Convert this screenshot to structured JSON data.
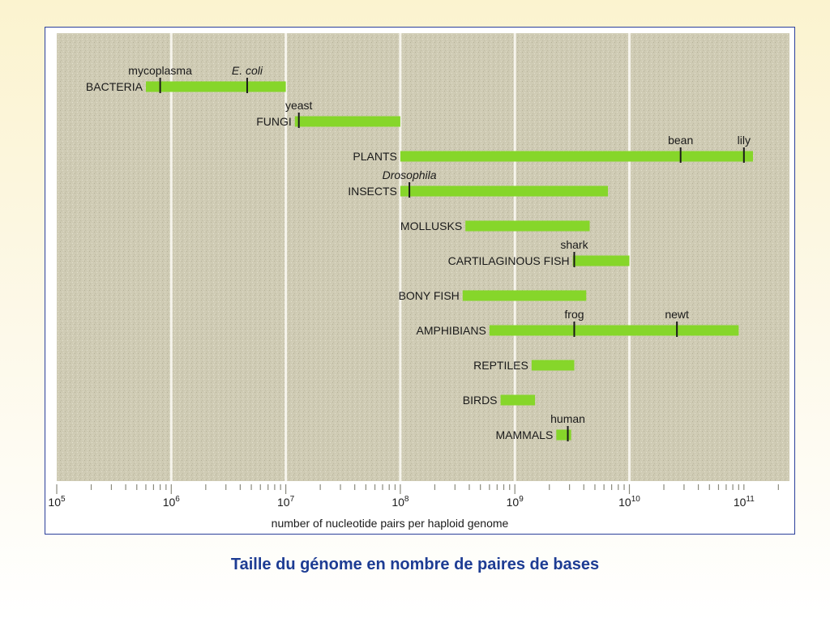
{
  "chart_data": {
    "type": "range-bar",
    "scale": "log10",
    "xlabel": "number of nucleotide pairs per haploid genome",
    "x_ticks": [
      {
        "exp": 5,
        "label": "10",
        "sup": "5"
      },
      {
        "exp": 6,
        "label": "10",
        "sup": "6"
      },
      {
        "exp": 7,
        "label": "10",
        "sup": "7"
      },
      {
        "exp": 8,
        "label": "10",
        "sup": "8"
      },
      {
        "exp": 9,
        "label": "10",
        "sup": "9"
      },
      {
        "exp": 10,
        "label": "10",
        "sup": "10"
      },
      {
        "exp": 11,
        "label": "10",
        "sup": "11"
      }
    ],
    "xlim": [
      100000,
      130000000000
    ],
    "grid": "vertical at each power of ten",
    "groups": [
      {
        "name": "BACTERIA",
        "min": 600000,
        "max": 10000000,
        "markers": [
          {
            "label": "mycoplasma",
            "value": 800000,
            "italic": false
          },
          {
            "label": "E. coli",
            "value": 4600000,
            "italic": true
          }
        ]
      },
      {
        "name": "FUNGI",
        "min": 12000000,
        "max": 100000000,
        "markers": [
          {
            "label": "yeast",
            "value": 13000000,
            "italic": false
          }
        ]
      },
      {
        "name": "PLANTS",
        "min": 100000000,
        "max": 120000000000,
        "markers": [
          {
            "label": "bean",
            "value": 28000000000,
            "italic": false
          },
          {
            "label": "lily",
            "value": 100000000000,
            "italic": false
          }
        ]
      },
      {
        "name": "INSECTS",
        "min": 100000000,
        "max": 6500000000,
        "markers": [
          {
            "label": "Drosophila",
            "value": 120000000,
            "italic": true
          }
        ]
      },
      {
        "name": "MOLLUSKS",
        "min": 370000000,
        "max": 4500000000,
        "markers": []
      },
      {
        "name": "CARTILAGINOUS FISH",
        "min": 3200000000,
        "max": 10000000000,
        "markers": [
          {
            "label": "shark",
            "value": 3300000000,
            "italic": false
          }
        ]
      },
      {
        "name": "BONY FISH",
        "min": 350000000,
        "max": 4200000000,
        "markers": []
      },
      {
        "name": "AMPHIBIANS",
        "min": 600000000,
        "max": 90000000000,
        "markers": [
          {
            "label": "frog",
            "value": 3300000000,
            "italic": false
          },
          {
            "label": "newt",
            "value": 26000000000,
            "italic": false
          }
        ]
      },
      {
        "name": "REPTILES",
        "min": 1400000000,
        "max": 3300000000,
        "markers": []
      },
      {
        "name": "BIRDS",
        "min": 750000000,
        "max": 1500000000,
        "markers": []
      },
      {
        "name": "MAMMALS",
        "min": 2300000000,
        "max": 3100000000,
        "markers": [
          {
            "label": "human",
            "value": 2900000000,
            "italic": false
          }
        ]
      }
    ],
    "colors": {
      "plot_background": "#cfcbb4",
      "grid_line": "#f6f4ec",
      "bar_fill": "#86d62a",
      "marker": "#1a1a1a",
      "axis_text": "#1a1a1a"
    }
  },
  "caption": "Taille du génome en nombre de paires de bases",
  "colors": {
    "caption": "#1d3c93",
    "frame_border": "#2b3f9a"
  }
}
